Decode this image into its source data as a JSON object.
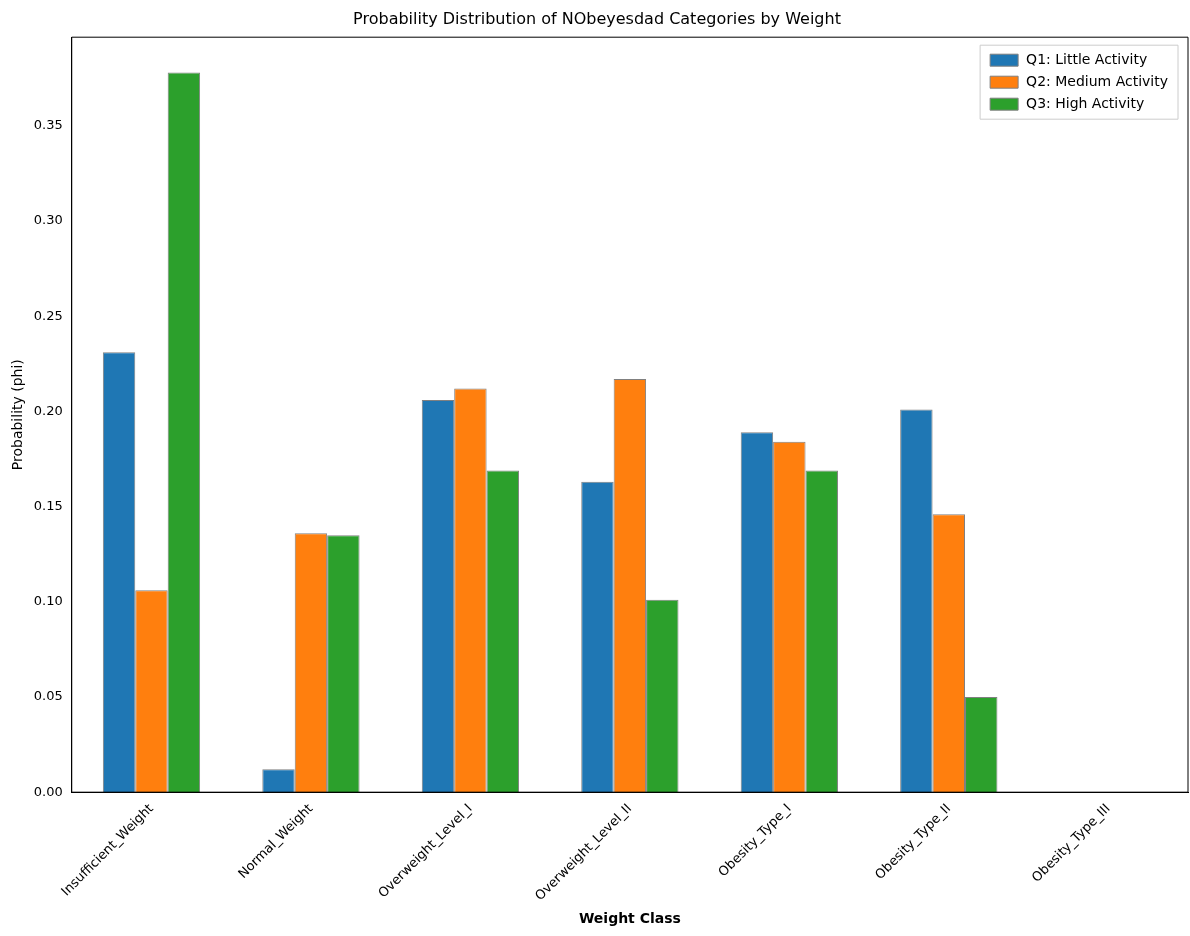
{
  "chart_data": {
    "type": "bar",
    "title": "Probability Distribution of NObeyesdad Categories by Weight",
    "xlabel": "Weight Class",
    "ylabel": "Probability (phi)",
    "categories": [
      "Insufficient_Weight",
      "Normal_Weight",
      "Overweight_Level_I",
      "Overweight_Level_II",
      "Obesity_Type_I",
      "Obesity_Type_II",
      "Obesity_Type_III"
    ],
    "series": [
      {
        "name": "Q1: Little Activity",
        "color": "#1f77b4",
        "values": [
          0.231,
          0.012,
          0.206,
          0.163,
          0.189,
          0.201,
          0
        ]
      },
      {
        "name": "Q2: Medium Activity",
        "color": "#ff7f0e",
        "values": [
          0.106,
          0.136,
          0.212,
          0.217,
          0.184,
          0.146,
          0
        ]
      },
      {
        "name": "Q3: High Activity",
        "color": "#2ca02c",
        "values": [
          0.378,
          0.135,
          0.169,
          0.101,
          0.169,
          0.05,
          0
        ]
      }
    ],
    "ylim": [
      0,
      0.3965
    ],
    "yticks": [
      {
        "value": 0,
        "label": "0.00"
      },
      {
        "value": 0.05,
        "label": "0.05"
      },
      {
        "value": 0.1,
        "label": "0.10"
      },
      {
        "value": 0.15,
        "label": "0.15"
      },
      {
        "value": 0.2,
        "label": "0.20"
      },
      {
        "value": 0.25,
        "label": "0.25"
      },
      {
        "value": 0.3,
        "label": "0.30"
      },
      {
        "value": 0.35,
        "label": "0.35"
      }
    ],
    "legend": "top right"
  }
}
